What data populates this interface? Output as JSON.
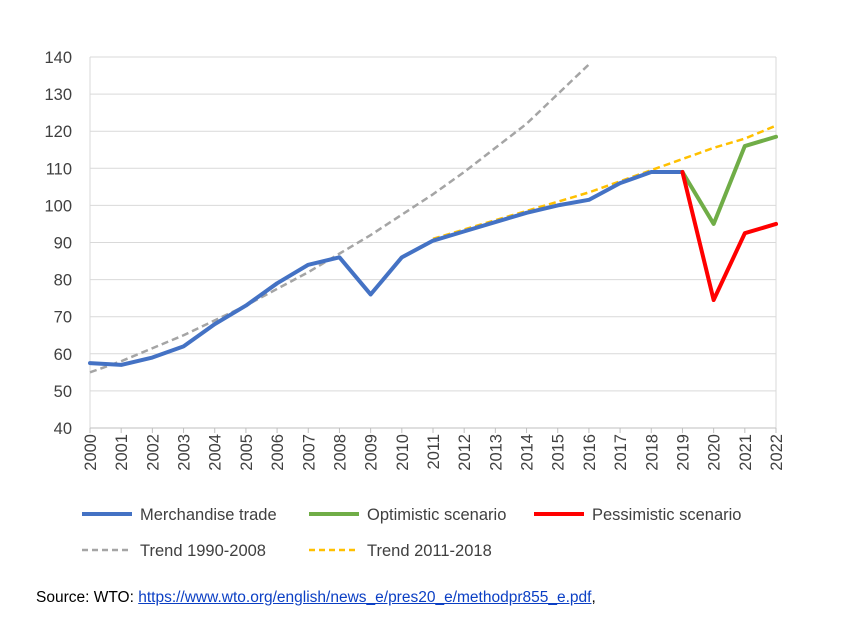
{
  "chart_data": {
    "type": "line",
    "title": "",
    "xlabel": "",
    "ylabel": "",
    "x": [
      2000,
      2001,
      2002,
      2003,
      2004,
      2005,
      2006,
      2007,
      2008,
      2009,
      2010,
      2011,
      2012,
      2013,
      2014,
      2015,
      2016,
      2017,
      2018,
      2019,
      2020,
      2021,
      2022
    ],
    "x_tick_labels": [
      "2000",
      "2001",
      "2002",
      "2003",
      "2004",
      "2005",
      "2006",
      "2007",
      "2008",
      "2009",
      "2010",
      "2011",
      "2012",
      "2013",
      "2014",
      "2015",
      "2016",
      "2017",
      "2018",
      "2019",
      "2020",
      "2021",
      "2022"
    ],
    "xlim": [
      2000,
      2022
    ],
    "ylim": [
      40,
      140
    ],
    "y_ticks": [
      40,
      50,
      60,
      70,
      80,
      90,
      100,
      110,
      120,
      130,
      140
    ],
    "grid": "horizontal",
    "legend_position": "bottom",
    "series": [
      {
        "name": "Merchandise trade",
        "color": "#4472c4",
        "style": "solid",
        "x": [
          2000,
          2001,
          2002,
          2003,
          2004,
          2005,
          2006,
          2007,
          2008,
          2009,
          2010,
          2011,
          2012,
          2013,
          2014,
          2015,
          2016,
          2017,
          2018,
          2019
        ],
        "y": [
          57.5,
          57,
          59,
          62,
          68,
          73,
          79,
          84,
          86,
          76,
          86,
          90.5,
          93,
          95.5,
          98,
          100,
          101.5,
          106,
          109,
          109
        ]
      },
      {
        "name": "Optimistic scenario",
        "color": "#70ad47",
        "style": "solid",
        "x": [
          2019,
          2020,
          2021,
          2022
        ],
        "y": [
          109,
          95,
          116,
          118.5
        ]
      },
      {
        "name": "Pessimistic scenario",
        "color": "#ff0000",
        "style": "solid",
        "x": [
          2019,
          2020,
          2021,
          2022
        ],
        "y": [
          109,
          74.5,
          92.5,
          95
        ]
      },
      {
        "name": "Trend 1990-2008",
        "color": "#a5a5a5",
        "style": "dashed",
        "x": [
          2000,
          2001,
          2002,
          2003,
          2004,
          2005,
          2006,
          2007,
          2008,
          2009,
          2010,
          2011,
          2012,
          2013,
          2014,
          2015,
          2016
        ],
        "y": [
          55,
          58,
          61.5,
          65,
          69,
          73,
          77.5,
          82,
          87,
          92,
          97.5,
          103,
          109,
          115.5,
          122,
          130,
          138
        ]
      },
      {
        "name": "Trend 2011-2018",
        "color": "#ffc000",
        "style": "dashed",
        "x": [
          2011,
          2012,
          2013,
          2014,
          2015,
          2016,
          2017,
          2018,
          2019,
          2020,
          2021,
          2022
        ],
        "y": [
          91,
          93.5,
          96,
          98.5,
          101,
          103.5,
          106.5,
          109.5,
          112.5,
          115.5,
          118,
          121.5
        ]
      }
    ]
  },
  "legend": {
    "merchandise": "Merchandise trade",
    "optimistic": "Optimistic scenario",
    "pessimistic": "Pessimistic scenario",
    "trend_1990": "Trend 1990-2008",
    "trend_2011": "Trend 2011-2018"
  },
  "source": {
    "prefix": "Source: WTO: ",
    "link_text": "https://www.wto.org/english/news_e/pres20_e/methodpr855_e.pdf",
    "suffix": ","
  }
}
